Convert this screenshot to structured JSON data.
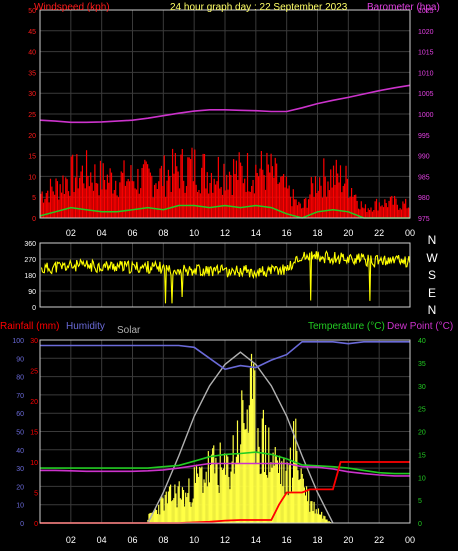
{
  "colors": {
    "background": "#000000",
    "plot_bg": "#000000",
    "grid": "#3a3a3a",
    "frame": "#cfcfcf",
    "wind_axis": "#ff1a1a",
    "baro_axis": "#e040e0",
    "title": "#ffff66",
    "wind": "#ff0000",
    "gust_green": "#22cc22",
    "baro_line": "#cc33cc",
    "direction": "#ffff00",
    "compass_text": "#ffffff",
    "rain": "#ff0000",
    "humidity": "#6a6ad8",
    "solar": "#ffff44",
    "solar_max": "#b0b0b0",
    "temperature": "#22cc22",
    "dewpoint": "#cc33cc",
    "hour_label": "#ffffff",
    "tick_label": "#ffffff"
  },
  "chart_data": [
    {
      "type": "line",
      "title": "24 hour graph day : 22 September 2023",
      "left_axis_label": "Windspeed (kph)",
      "right_axis_label": "Barometer (hpa)",
      "x_ticks": [
        "02",
        "04",
        "06",
        "08",
        "10",
        "12",
        "14",
        "16",
        "18",
        "20",
        "22",
        "00"
      ],
      "xlim": [
        0,
        24
      ],
      "ylim_left": [
        0,
        50
      ],
      "ylim_right": [
        975,
        1025
      ],
      "left_ticks": [
        0,
        5,
        10,
        15,
        20,
        25,
        30,
        35,
        40,
        45,
        50
      ],
      "right_ticks": [
        975,
        980,
        985,
        990,
        995,
        1000,
        1005,
        1010,
        1015,
        1020,
        1025
      ],
      "series": [
        {
          "name": "Barometer",
          "axis": "right",
          "x": [
            0,
            1,
            2,
            3,
            4,
            5,
            6,
            7,
            8,
            9,
            10,
            11,
            12,
            13,
            14,
            15,
            16,
            17,
            18,
            19,
            20,
            21,
            22,
            23,
            24
          ],
          "values": [
            998.5,
            998.3,
            998.0,
            998.0,
            998.1,
            998.3,
            998.5,
            999.0,
            999.6,
            1000.2,
            1000.7,
            1001.0,
            1001.0,
            1000.9,
            1000.8,
            1000.6,
            1000.6,
            1001.5,
            1002.5,
            1003.3,
            1004.0,
            1004.8,
            1005.6,
            1006.3,
            1006.9
          ]
        },
        {
          "name": "Windspeed",
          "axis": "left",
          "x": [
            0,
            1,
            2,
            3,
            4,
            5,
            6,
            7,
            8,
            9,
            10,
            11,
            12,
            13,
            14,
            15,
            16,
            17,
            18,
            19,
            20,
            21,
            22,
            23,
            24
          ],
          "values": [
            4,
            6,
            9,
            8,
            7,
            7,
            8,
            8,
            8,
            9,
            10,
            9,
            10,
            9,
            10,
            9,
            5,
            2,
            8,
            9,
            7,
            2,
            3,
            3,
            2
          ]
        },
        {
          "name": "Gust max",
          "axis": "left",
          "x": [
            0,
            1,
            2,
            3,
            4,
            5,
            6,
            7,
            8,
            9,
            10,
            11,
            12,
            13,
            14,
            15,
            16,
            17,
            18,
            19,
            20,
            21,
            22,
            23,
            24
          ],
          "values": [
            8,
            10,
            14,
            15,
            13,
            13,
            13,
            13,
            14,
            16,
            17,
            15,
            16,
            15,
            16,
            15,
            9,
            3,
            13,
            14,
            12,
            3,
            5,
            5,
            4
          ]
        },
        {
          "name": "Avg wind",
          "axis": "left",
          "x": [
            0,
            1,
            2,
            3,
            4,
            5,
            6,
            7,
            8,
            9,
            10,
            11,
            12,
            13,
            14,
            15,
            16,
            17,
            18,
            19,
            20,
            21,
            22,
            23,
            24
          ],
          "values": [
            0.5,
            1.5,
            2.5,
            2,
            1.5,
            1.5,
            2,
            2.5,
            2,
            3,
            3,
            2.5,
            3,
            2.5,
            3,
            2.5,
            1,
            0,
            1.5,
            2,
            1.5,
            0,
            0,
            0,
            0
          ]
        }
      ]
    },
    {
      "type": "scatter",
      "title": "",
      "compass_labels": [
        "N",
        "W",
        "S",
        "E",
        "N"
      ],
      "x_ticks": [
        "02",
        "04",
        "06",
        "08",
        "10",
        "12",
        "14",
        "16",
        "18",
        "20",
        "22",
        "00"
      ],
      "xlim": [
        0,
        24
      ],
      "ylim": [
        0,
        360
      ],
      "left_ticks": [
        0,
        90,
        180,
        270,
        360
      ],
      "series": [
        {
          "name": "Wind direction",
          "x": [
            0,
            1,
            2,
            3,
            4,
            5,
            6,
            7,
            8,
            9,
            10,
            11,
            12,
            13,
            14,
            15,
            16,
            17,
            18,
            19,
            20,
            21,
            22,
            23,
            24
          ],
          "values": [
            210,
            225,
            230,
            232,
            228,
            230,
            222,
            225,
            218,
            210,
            210,
            205,
            200,
            205,
            198,
            200,
            215,
            285,
            280,
            278,
            275,
            265,
            255,
            262,
            258
          ]
        }
      ]
    },
    {
      "type": "line",
      "title": "",
      "left_labels": [
        "Rainfall (mm)",
        "Humidity"
      ],
      "solar_label": "Solar",
      "right_labels": [
        "Temperature (°C)",
        "Dew Point (°C)"
      ],
      "x_ticks": [
        "02",
        "04",
        "06",
        "08",
        "10",
        "12",
        "14",
        "16",
        "18",
        "20",
        "22",
        "00"
      ],
      "xlim": [
        0,
        24
      ],
      "humidity_ticks": [
        0,
        10,
        20,
        30,
        40,
        50,
        60,
        70,
        80,
        90,
        100
      ],
      "rain_ticks": [
        0,
        5,
        10,
        15,
        20,
        25,
        30
      ],
      "temp_ticks": [
        0,
        5,
        10,
        15,
        20,
        25,
        30,
        35,
        40
      ],
      "series": [
        {
          "name": "Humidity",
          "axis": "humidity",
          "x": [
            0,
            1,
            2,
            3,
            4,
            5,
            6,
            7,
            8,
            9,
            10,
            11,
            12,
            13,
            14,
            15,
            16,
            17,
            18,
            19,
            20,
            21,
            22,
            23,
            24
          ],
          "values": [
            97,
            97,
            97,
            97,
            97,
            97,
            97,
            97,
            97,
            97,
            96,
            90,
            84,
            86,
            85,
            89,
            92,
            99,
            99,
            99,
            98,
            99,
            99,
            99,
            99
          ]
        },
        {
          "name": "Temperature",
          "axis": "temp",
          "x": [
            0,
            1,
            2,
            3,
            4,
            5,
            6,
            7,
            8,
            9,
            10,
            11,
            12,
            13,
            14,
            15,
            16,
            17,
            18,
            19,
            20,
            21,
            22,
            23,
            24
          ],
          "values": [
            12,
            12,
            12,
            12,
            12,
            12,
            12,
            12,
            12.3,
            12.6,
            13.5,
            14.5,
            15,
            15.2,
            15.5,
            15,
            14,
            12.7,
            12.5,
            12.3,
            12,
            11.5,
            11,
            10.8,
            10.8
          ]
        },
        {
          "name": "Dew Point",
          "axis": "temp",
          "x": [
            0,
            1,
            2,
            3,
            4,
            5,
            6,
            7,
            8,
            9,
            10,
            11,
            12,
            13,
            14,
            15,
            16,
            17,
            18,
            19,
            20,
            21,
            22,
            23,
            24
          ],
          "values": [
            11.5,
            11.5,
            11.4,
            11.3,
            11.3,
            11.3,
            11.3,
            11.4,
            11.6,
            12,
            12.5,
            13,
            13,
            13,
            13,
            13,
            13,
            12.3,
            12.2,
            11.8,
            11.2,
            10.8,
            10.5,
            10.3,
            10.3
          ]
        },
        {
          "name": "Rainfall",
          "axis": "rain",
          "x": [
            0,
            1,
            2,
            3,
            4,
            5,
            6,
            7,
            8,
            9,
            10,
            11,
            12,
            13,
            14,
            15,
            15.5,
            16,
            16.5,
            17,
            17.5,
            18,
            18.5,
            19,
            19.5,
            20,
            21,
            22,
            23,
            24
          ],
          "values": [
            0,
            0,
            0,
            0,
            0,
            0,
            0,
            0,
            0,
            0,
            0.1,
            0.2,
            0.4,
            0.5,
            0.5,
            0.5,
            3,
            5,
            5,
            5,
            5.5,
            5.5,
            5.5,
            5.5,
            10,
            10,
            10,
            10,
            10,
            10
          ]
        },
        {
          "name": "Solar",
          "axis": "solar",
          "x": [
            7,
            7.5,
            8,
            8.5,
            9,
            9.5,
            10,
            10.5,
            11,
            11.5,
            12,
            12.5,
            13,
            13.5,
            14,
            14.5,
            15,
            15.5,
            16,
            16.5,
            17,
            17.5,
            18,
            18.5,
            19
          ],
          "values": [
            2,
            5,
            8,
            10,
            12,
            10,
            15,
            18,
            20,
            22,
            18,
            25,
            35,
            45,
            40,
            30,
            25,
            22,
            15,
            30,
            18,
            8,
            5,
            2,
            0
          ]
        },
        {
          "name": "Solar max",
          "axis": "solar",
          "x": [
            7,
            8,
            9,
            10,
            11,
            12,
            13,
            14,
            15,
            16,
            17,
            18,
            19
          ],
          "values": [
            0,
            10,
            22,
            35,
            45,
            52,
            56,
            52,
            45,
            35,
            22,
            10,
            0
          ]
        }
      ]
    }
  ]
}
